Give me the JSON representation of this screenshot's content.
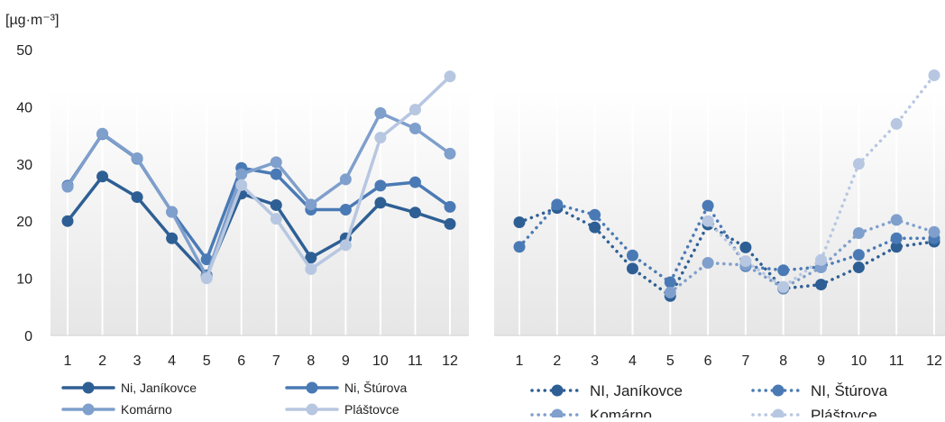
{
  "unit_label": "[µg·m⁻³]",
  "chart_data": [
    {
      "type": "line",
      "categories": [
        "1",
        "2",
        "3",
        "4",
        "5",
        "6",
        "7",
        "8",
        "9",
        "10",
        "11",
        "12"
      ],
      "ylim": [
        0,
        50
      ],
      "yticks": [
        "0",
        "10",
        "20",
        "30",
        "40",
        "50"
      ],
      "ylabel": "[µg·m⁻³]",
      "grid": "vertical",
      "legend_position": "bottom",
      "series": [
        {
          "name": "Ni, Janíkovce",
          "color": "#2e5f94",
          "style": "solid",
          "values": [
            20,
            27.8,
            24.2,
            17,
            10.5,
            24.8,
            22.8,
            13.6,
            17,
            23.2,
            21.5,
            19.5
          ]
        },
        {
          "name": "Ni, Štúrova",
          "color": "#4a7ab5",
          "style": "solid",
          "values": [
            26.2,
            35.2,
            30.9,
            21.6,
            13.3,
            29.3,
            28.2,
            22,
            22,
            26.2,
            26.8,
            22.5
          ]
        },
        {
          "name": "Komárno",
          "color": "#7f9fcc",
          "style": "solid",
          "values": [
            26,
            35.3,
            31,
            21.6,
            10.3,
            28.2,
            30.3,
            22.9,
            27.3,
            38.9,
            36.2,
            31.8
          ]
        },
        {
          "name": "Pláštovce",
          "color": "#b7c7e1",
          "style": "solid",
          "values": [
            null,
            null,
            null,
            null,
            10,
            26.3,
            20.4,
            11.6,
            15.8,
            34.6,
            39.5,
            45.3
          ]
        }
      ]
    },
    {
      "type": "line",
      "categories": [
        "1",
        "2",
        "3",
        "4",
        "5",
        "6",
        "7",
        "8",
        "9",
        "10",
        "11",
        "12"
      ],
      "ylim": [
        0,
        50
      ],
      "grid": "vertical",
      "legend_position": "bottom",
      "series": [
        {
          "name": "NI, Janíkovce",
          "color": "#2e5f94",
          "style": "dotted",
          "values": [
            19.8,
            22.3,
            18.9,
            11.7,
            6.9,
            19.4,
            15.4,
            8.2,
            8.9,
            11.9,
            15.5,
            16.4
          ]
        },
        {
          "name": "NI, Štúrova",
          "color": "#4a7ab5",
          "style": "dotted",
          "values": [
            15.5,
            22.9,
            21.1,
            14,
            9.3,
            22.7,
            12.1,
            11.4,
            12,
            14.1,
            17,
            17
          ]
        },
        {
          "name": "Komárno",
          "color": "#7f9fcc",
          "style": "dotted",
          "values": [
            null,
            null,
            null,
            null,
            7.5,
            12.7,
            12.3,
            8.3,
            11.9,
            17.9,
            20.2,
            18.1
          ]
        },
        {
          "name": "Pláštovce",
          "color": "#b7c7e1",
          "style": "dotted",
          "values": [
            null,
            null,
            null,
            null,
            null,
            20,
            13,
            8.5,
            13.2,
            30,
            37,
            45.5
          ]
        }
      ]
    }
  ]
}
